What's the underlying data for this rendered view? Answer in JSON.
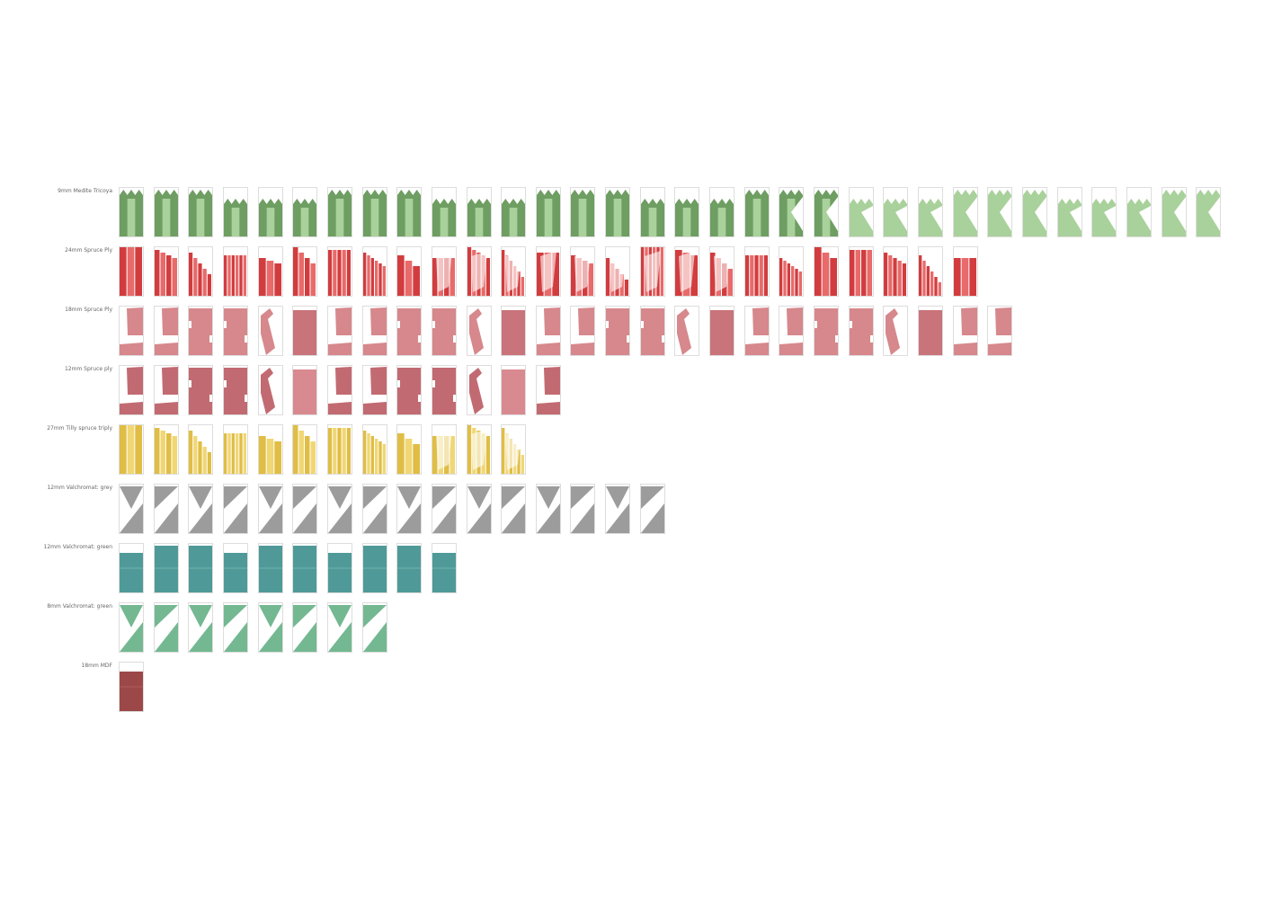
{
  "rows": [
    {
      "label": "9mm Medite Tricoya",
      "count": 32,
      "color": "#6e9e62",
      "color2": "#a9d19b",
      "style": "zigzag"
    },
    {
      "label": "24mm Spruce Ply",
      "count": 25,
      "color": "#d23c3e",
      "color2": "#e86a6a",
      "style": "strips"
    },
    {
      "label": "18mm Spruce Ply",
      "count": 26,
      "color": "#d6888c",
      "color2": "#c9737a",
      "style": "blocks"
    },
    {
      "label": "12mm Spruce ply",
      "count": 13,
      "color": "#c26a72",
      "color2": "#d88a90",
      "style": "blocks"
    },
    {
      "label": "27mm Tilly spruce triply",
      "count": 12,
      "color": "#e0bd44",
      "color2": "#f0d774",
      "style": "strips"
    },
    {
      "label": "12mm Valchromat: grey",
      "count": 16,
      "color": "#9c9c9c",
      "color2": "#b8b8b8",
      "style": "triangles"
    },
    {
      "label": "12mm Valchromat: green",
      "count": 10,
      "color": "#4f9a98",
      "color2": "#7cbcba",
      "style": "full"
    },
    {
      "label": "8mm Valchromat: green",
      "count": 8,
      "color": "#74b892",
      "color2": "#9ccfb1",
      "style": "triangles"
    },
    {
      "label": "18mm MDF",
      "count": 1,
      "color": "#9c4848",
      "color2": "#b86464",
      "style": "full"
    }
  ]
}
